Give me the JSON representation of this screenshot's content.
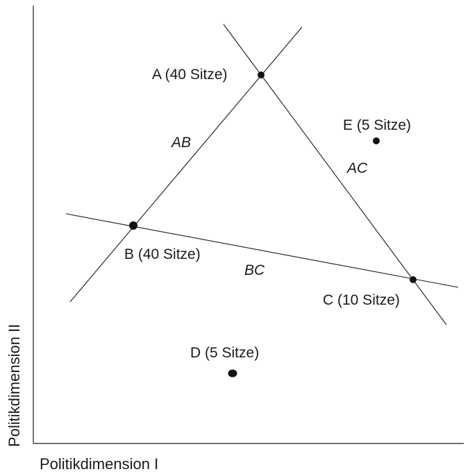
{
  "axes": {
    "x_label": "Politikdimension I",
    "y_label": "Politikdimension II"
  },
  "parties": {
    "A": {
      "label": "A (40 Sitze)"
    },
    "B": {
      "label": "B (40 Sitze)"
    },
    "C": {
      "label": "C (10 Sitze)"
    },
    "D": {
      "label": "D (5 Sitze)"
    },
    "E": {
      "label": "E (5 Sitze)"
    }
  },
  "lines": {
    "AB": {
      "label": "AB"
    },
    "AC": {
      "label": "AC"
    },
    "BC": {
      "label": "BC"
    }
  }
}
